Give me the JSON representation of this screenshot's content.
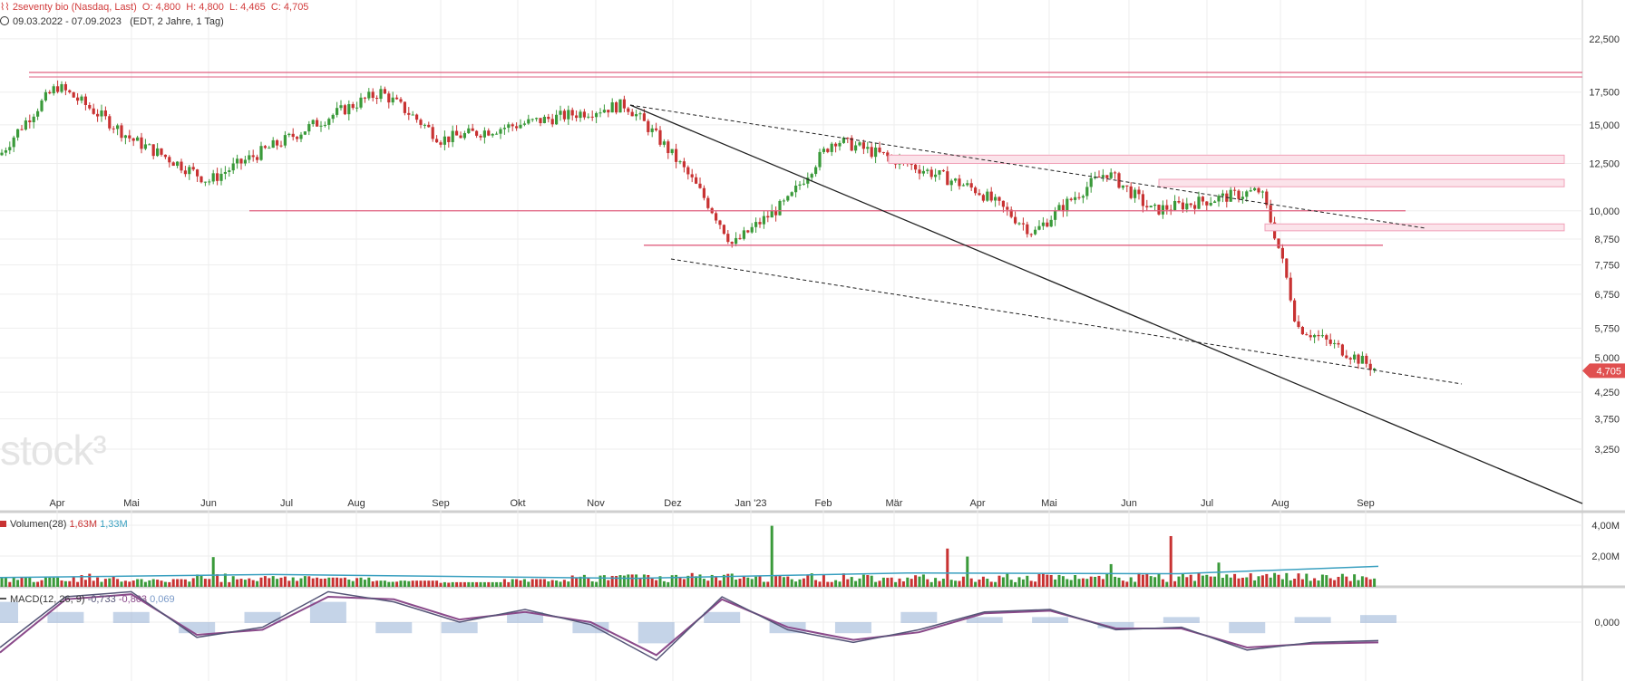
{
  "header": {
    "title": "2seventy bio (Nasdaq, Last)",
    "open": "O: 4,800",
    "high": "H: 4,800",
    "low": "L: 4,465",
    "close": "C: 4,705",
    "range": "09.03.2022 - 07.09.2023",
    "meta": "(EDT, 2 Jahre, 1 Tag)"
  },
  "watermark": "stock³",
  "colors": {
    "up": "#3a9a3a",
    "down": "#c83232",
    "support": "#e06080",
    "trend": "#222222",
    "volume_ma": "#3aa0c0",
    "macd": "#555577",
    "signal": "#8a4a8a",
    "hist": "#9fb8d8",
    "price_tag": "#e05050"
  },
  "chart_data": [
    {
      "type": "candlestick",
      "title": "2seventy bio (Nasdaq, Last)",
      "x_tick_labels": [
        "Apr",
        "Mai",
        "Jun",
        "Jul",
        "Aug",
        "Sep",
        "Okt",
        "Nov",
        "Dez",
        "Jan '23",
        "Feb",
        "Mär",
        "Apr",
        "Mai",
        "Jun",
        "Jul",
        "Aug",
        "Sep"
      ],
      "y_tick_labels": [
        "22,500",
        "17,500",
        "15,000",
        "12,500",
        "10,000",
        "8,750",
        "7,750",
        "6,750",
        "5,750",
        "5,000",
        "4,250",
        "3,750",
        "3,250"
      ],
      "y_scale": "log",
      "last_price_label": "4,705",
      "x": [
        "Mar '22",
        "Apr",
        "May",
        "Jun",
        "Jul",
        "Aug",
        "Sep",
        "Oct",
        "Nov",
        "Dec",
        "Jan '23",
        "Feb",
        "Mar",
        "Apr",
        "May",
        "Jun",
        "Jul",
        "Aug",
        "Sep"
      ],
      "close": [
        13.0,
        18.0,
        14.0,
        11.5,
        14.0,
        17.5,
        14.0,
        15.0,
        16.5,
        8.5,
        10.5,
        14.0,
        11.0,
        9.0,
        12.0,
        10.0,
        11.0,
        5.8,
        4.705
      ],
      "horizontal_levels": [
        19.2,
        10.0,
        8.5
      ],
      "resistance_zones": [
        [
          12.5,
          13.0
        ],
        [
          11.2,
          11.6
        ],
        [
          9.1,
          9.4
        ]
      ]
    },
    {
      "type": "bar",
      "title": "Volumen(28)",
      "legend": [
        "1,63M",
        "1,33M"
      ],
      "y_tick_labels": [
        "4,00M",
        "2,00M"
      ],
      "values_millions": [
        0.6,
        0.9,
        0.5,
        2.5,
        0.7,
        0.6,
        0.4,
        0.3,
        0.5,
        1.0,
        0.8,
        1.1,
        4.3,
        2.5,
        0.8,
        2.8,
        1.0,
        1.5,
        3.6,
        2.6,
        1.4,
        1.6
      ]
    },
    {
      "type": "line",
      "title": "MACD(12, 26, 9)",
      "legend": [
        "-0,733",
        "-0,803",
        "0,069"
      ],
      "y_tick_labels": [
        "0,000"
      ],
      "macd": [
        -1.0,
        1.0,
        1.2,
        -0.6,
        -0.2,
        1.2,
        0.8,
        0.0,
        0.5,
        -0.1,
        -1.5,
        1.0,
        -0.3,
        -0.8,
        -0.3,
        0.4,
        0.5,
        -0.3,
        -0.2,
        -1.1,
        -0.8,
        -0.73
      ],
      "signal": [
        -1.2,
        0.9,
        1.1,
        -0.5,
        -0.3,
        1.0,
        0.9,
        0.1,
        0.4,
        0.0,
        -1.3,
        0.9,
        -0.2,
        -0.7,
        -0.4,
        0.35,
        0.45,
        -0.25,
        -0.25,
        -1.0,
        -0.85,
        -0.8
      ]
    }
  ]
}
